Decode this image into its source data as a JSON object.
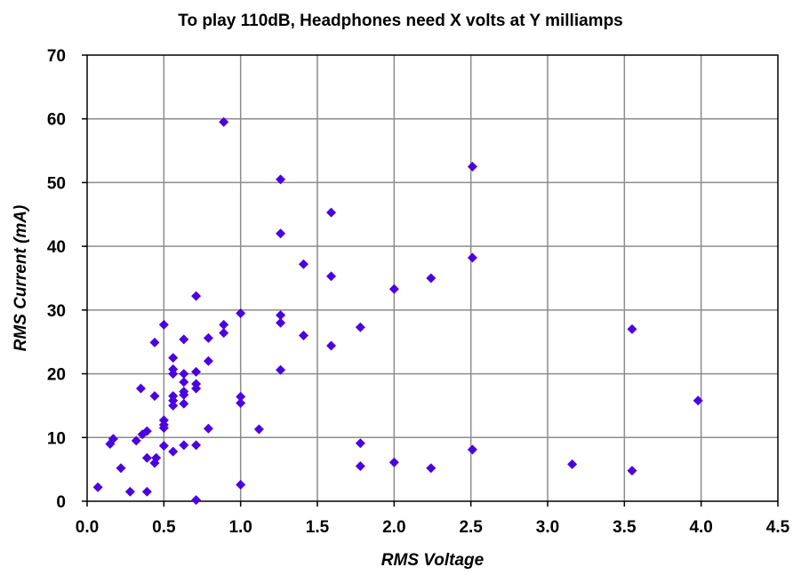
{
  "chart_data": {
    "type": "scatter",
    "title": "To play 110dB, Headphones need X volts at Y milliamps",
    "xlabel": "RMS Voltage",
    "ylabel": "RMS Current (mA)",
    "xlim": [
      0,
      4.5
    ],
    "ylim": [
      0,
      70
    ],
    "xticks": [
      "0.0",
      "0.5",
      "1.0",
      "1.5",
      "2.0",
      "2.5",
      "3.0",
      "3.5",
      "4.0",
      "4.5"
    ],
    "yticks": [
      "0",
      "10",
      "20",
      "30",
      "40",
      "50",
      "60",
      "70"
    ],
    "grid": true,
    "legend": "none",
    "marker": "diamond",
    "color": "#4b00e0",
    "points": [
      {
        "x": 0.07,
        "y": 2.2
      },
      {
        "x": 0.15,
        "y": 9.0
      },
      {
        "x": 0.17,
        "y": 9.8
      },
      {
        "x": 0.22,
        "y": 5.2
      },
      {
        "x": 0.28,
        "y": 1.5
      },
      {
        "x": 0.32,
        "y": 9.5
      },
      {
        "x": 0.35,
        "y": 17.7
      },
      {
        "x": 0.36,
        "y": 10.5
      },
      {
        "x": 0.39,
        "y": 11.0
      },
      {
        "x": 0.39,
        "y": 6.8
      },
      {
        "x": 0.39,
        "y": 1.5
      },
      {
        "x": 0.44,
        "y": 24.9
      },
      {
        "x": 0.44,
        "y": 16.5
      },
      {
        "x": 0.44,
        "y": 6.0
      },
      {
        "x": 0.45,
        "y": 6.8
      },
      {
        "x": 0.5,
        "y": 27.7
      },
      {
        "x": 0.5,
        "y": 12.7
      },
      {
        "x": 0.5,
        "y": 12.0
      },
      {
        "x": 0.5,
        "y": 11.5
      },
      {
        "x": 0.5,
        "y": 8.7
      },
      {
        "x": 0.56,
        "y": 22.5
      },
      {
        "x": 0.56,
        "y": 20.7
      },
      {
        "x": 0.56,
        "y": 20.0
      },
      {
        "x": 0.56,
        "y": 16.5
      },
      {
        "x": 0.56,
        "y": 15.8
      },
      {
        "x": 0.56,
        "y": 15.0
      },
      {
        "x": 0.56,
        "y": 7.8
      },
      {
        "x": 0.63,
        "y": 25.4
      },
      {
        "x": 0.63,
        "y": 20.0
      },
      {
        "x": 0.63,
        "y": 18.7
      },
      {
        "x": 0.63,
        "y": 17.2
      },
      {
        "x": 0.63,
        "y": 16.7
      },
      {
        "x": 0.63,
        "y": 15.3
      },
      {
        "x": 0.63,
        "y": 8.8
      },
      {
        "x": 0.71,
        "y": 32.2
      },
      {
        "x": 0.71,
        "y": 20.3
      },
      {
        "x": 0.71,
        "y": 18.4
      },
      {
        "x": 0.71,
        "y": 17.7
      },
      {
        "x": 0.71,
        "y": 8.8
      },
      {
        "x": 0.71,
        "y": 0.2
      },
      {
        "x": 0.79,
        "y": 25.6
      },
      {
        "x": 0.79,
        "y": 22.0
      },
      {
        "x": 0.79,
        "y": 11.4
      },
      {
        "x": 0.89,
        "y": 59.5
      },
      {
        "x": 0.89,
        "y": 27.7
      },
      {
        "x": 0.89,
        "y": 26.4
      },
      {
        "x": 1.0,
        "y": 29.5
      },
      {
        "x": 1.0,
        "y": 16.4
      },
      {
        "x": 1.0,
        "y": 15.4
      },
      {
        "x": 1.0,
        "y": 2.6
      },
      {
        "x": 1.12,
        "y": 11.3
      },
      {
        "x": 1.26,
        "y": 50.5
      },
      {
        "x": 1.26,
        "y": 42.0
      },
      {
        "x": 1.26,
        "y": 29.2
      },
      {
        "x": 1.26,
        "y": 28.0
      },
      {
        "x": 1.26,
        "y": 20.6
      },
      {
        "x": 1.41,
        "y": 37.2
      },
      {
        "x": 1.41,
        "y": 26.0
      },
      {
        "x": 1.59,
        "y": 45.3
      },
      {
        "x": 1.59,
        "y": 35.3
      },
      {
        "x": 1.59,
        "y": 24.4
      },
      {
        "x": 1.78,
        "y": 27.3
      },
      {
        "x": 1.78,
        "y": 9.1
      },
      {
        "x": 1.78,
        "y": 5.5
      },
      {
        "x": 2.0,
        "y": 33.3
      },
      {
        "x": 2.0,
        "y": 6.1
      },
      {
        "x": 2.24,
        "y": 35.0
      },
      {
        "x": 2.24,
        "y": 5.2
      },
      {
        "x": 2.51,
        "y": 52.5
      },
      {
        "x": 2.51,
        "y": 38.2
      },
      {
        "x": 2.51,
        "y": 8.1
      },
      {
        "x": 3.16,
        "y": 5.8
      },
      {
        "x": 3.55,
        "y": 27.0
      },
      {
        "x": 3.55,
        "y": 4.8
      },
      {
        "x": 3.98,
        "y": 15.8
      }
    ]
  }
}
